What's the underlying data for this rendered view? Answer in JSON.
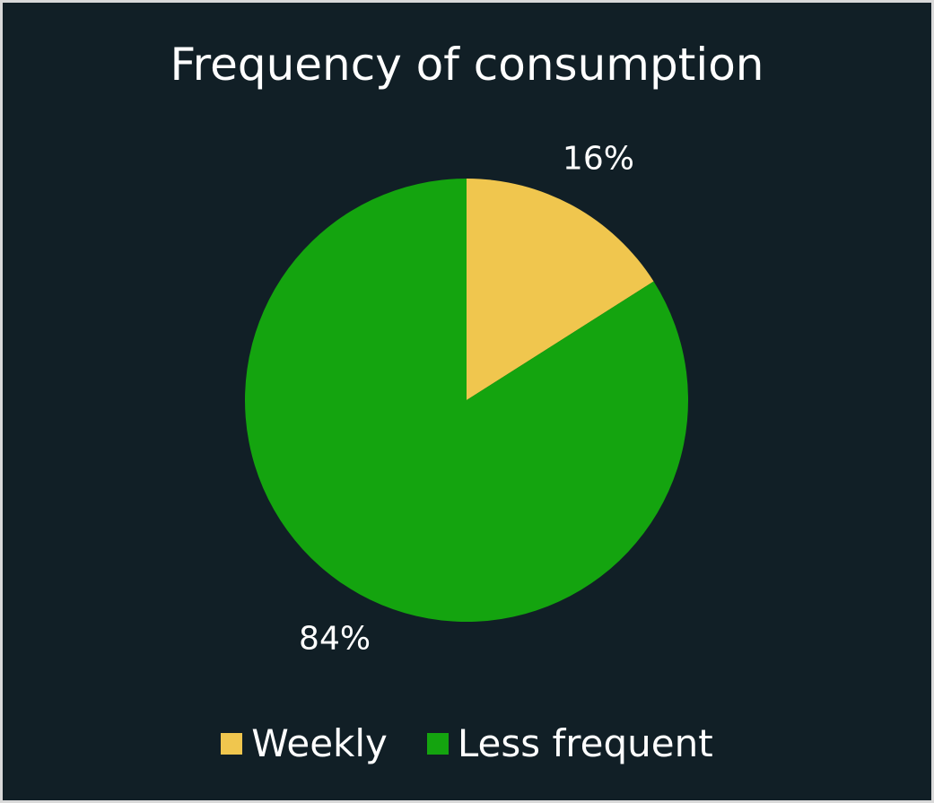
{
  "chart_data": {
    "type": "pie",
    "title": "Frequency of consumption",
    "categories": [
      "Weekly",
      "Less frequent"
    ],
    "values": [
      16,
      84
    ],
    "data_labels": [
      "16%",
      "84%"
    ],
    "colors": [
      "#f0c64e",
      "#14a40f"
    ],
    "legend_position": "bottom",
    "background_color": "#111f26",
    "text_color": "#ffffff"
  }
}
